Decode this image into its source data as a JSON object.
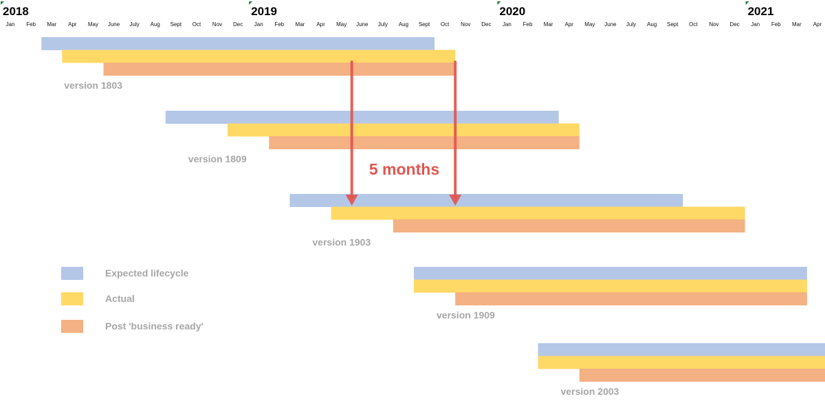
{
  "chart_data": {
    "type": "gantt",
    "x_axis": {
      "start": "2018-01",
      "end": "2021-04",
      "years": [
        "2018",
        "2019",
        "2020",
        "2021"
      ],
      "month_labels": [
        "Jan",
        "Feb",
        "Mar",
        "Apr",
        "May",
        "June",
        "July",
        "Aug",
        "Sept",
        "Oct",
        "Nov",
        "Dec"
      ]
    },
    "legend": {
      "placement": "left",
      "items": [
        {
          "name": "Expected lifecycle",
          "color": "#b4c7e7"
        },
        {
          "name": "Actual",
          "color": "#ffd966"
        },
        {
          "name": "Post 'business ready'",
          "color": "#f4b183"
        }
      ]
    },
    "versions": [
      {
        "label": "version 1803",
        "expected": [
          "2018-03",
          "2019-09"
        ],
        "actual": [
          "2018-04",
          "2019-10"
        ],
        "post_business_ready": [
          "2018-06",
          "2019-10"
        ]
      },
      {
        "label": "version 1809",
        "expected": [
          "2018-09",
          "2020-03"
        ],
        "actual": [
          "2018-12",
          "2020-04"
        ],
        "post_business_ready": [
          "2019-02",
          "2020-04"
        ]
      },
      {
        "label": "version 1903",
        "expected": [
          "2019-03",
          "2020-09"
        ],
        "actual": [
          "2019-05",
          "2020-12"
        ],
        "post_business_ready": [
          "2019-08",
          "2020-12"
        ]
      },
      {
        "label": "version 1909",
        "expected": [
          "2019-09",
          "2021-03"
        ],
        "actual": [
          "2019-09",
          "2021-03"
        ],
        "post_business_ready": [
          "2019-11",
          "2021-03"
        ]
      },
      {
        "label": "version 2003",
        "expected": [
          "2020-03",
          "2021-04"
        ],
        "actual": [
          "2020-03",
          "2021-04"
        ],
        "post_business_ready": [
          "2020-05",
          "2021-04"
        ]
      }
    ],
    "annotation": {
      "text": "5 months",
      "color": "#e2554f",
      "arrows": [
        {
          "date": "2019-06",
          "from_version": "version 1803",
          "to_version": "version 1903"
        },
        {
          "date": "2019-11",
          "from_version": "version 1803",
          "to_version": "version 1903"
        }
      ]
    }
  }
}
